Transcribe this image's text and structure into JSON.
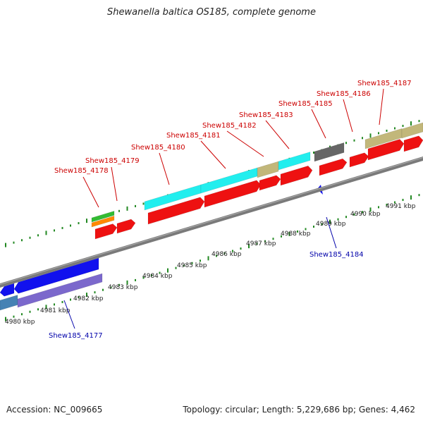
{
  "title": "Shewanella baltica OS185, complete genome",
  "footer": {
    "accession": "Accession: NC_009665",
    "summary": "Topology: circular; Length: 5,229,686 bp; Genes: 4,462"
  },
  "colors": {
    "forward_gene": "#ee1111",
    "reverse_gene": "#1111ee",
    "backbone": "#7a7a7a",
    "tick": "#228822",
    "cyan": "#22eeee",
    "khaki": "#c2b77a",
    "purple": "#7b68cc",
    "dark_gray": "#666666",
    "steel": "#4682b4",
    "green": "#33bb33",
    "orange": "#ff8800"
  },
  "kbp_labels": [
    "4980 kbp",
    "4981 kbp",
    "4982 kbp",
    "4983 kbp",
    "4984 kbp",
    "4985 kbp",
    "4986 kbp",
    "4987 kbp",
    "4988 kbp",
    "4989 kbp",
    "4990 kbp",
    "4991 kbp"
  ],
  "forward_gene_labels": [
    "Shew185_4178",
    "Shew185_4179",
    "Shew185_4180",
    "Shew185_4181",
    "Shew185_4182",
    "Shew185_4183",
    "Shew185_4185",
    "Shew185_4186",
    "Shew185_4187"
  ],
  "reverse_gene_labels": [
    "Shew185_4177",
    "Shew185_4184"
  ]
}
